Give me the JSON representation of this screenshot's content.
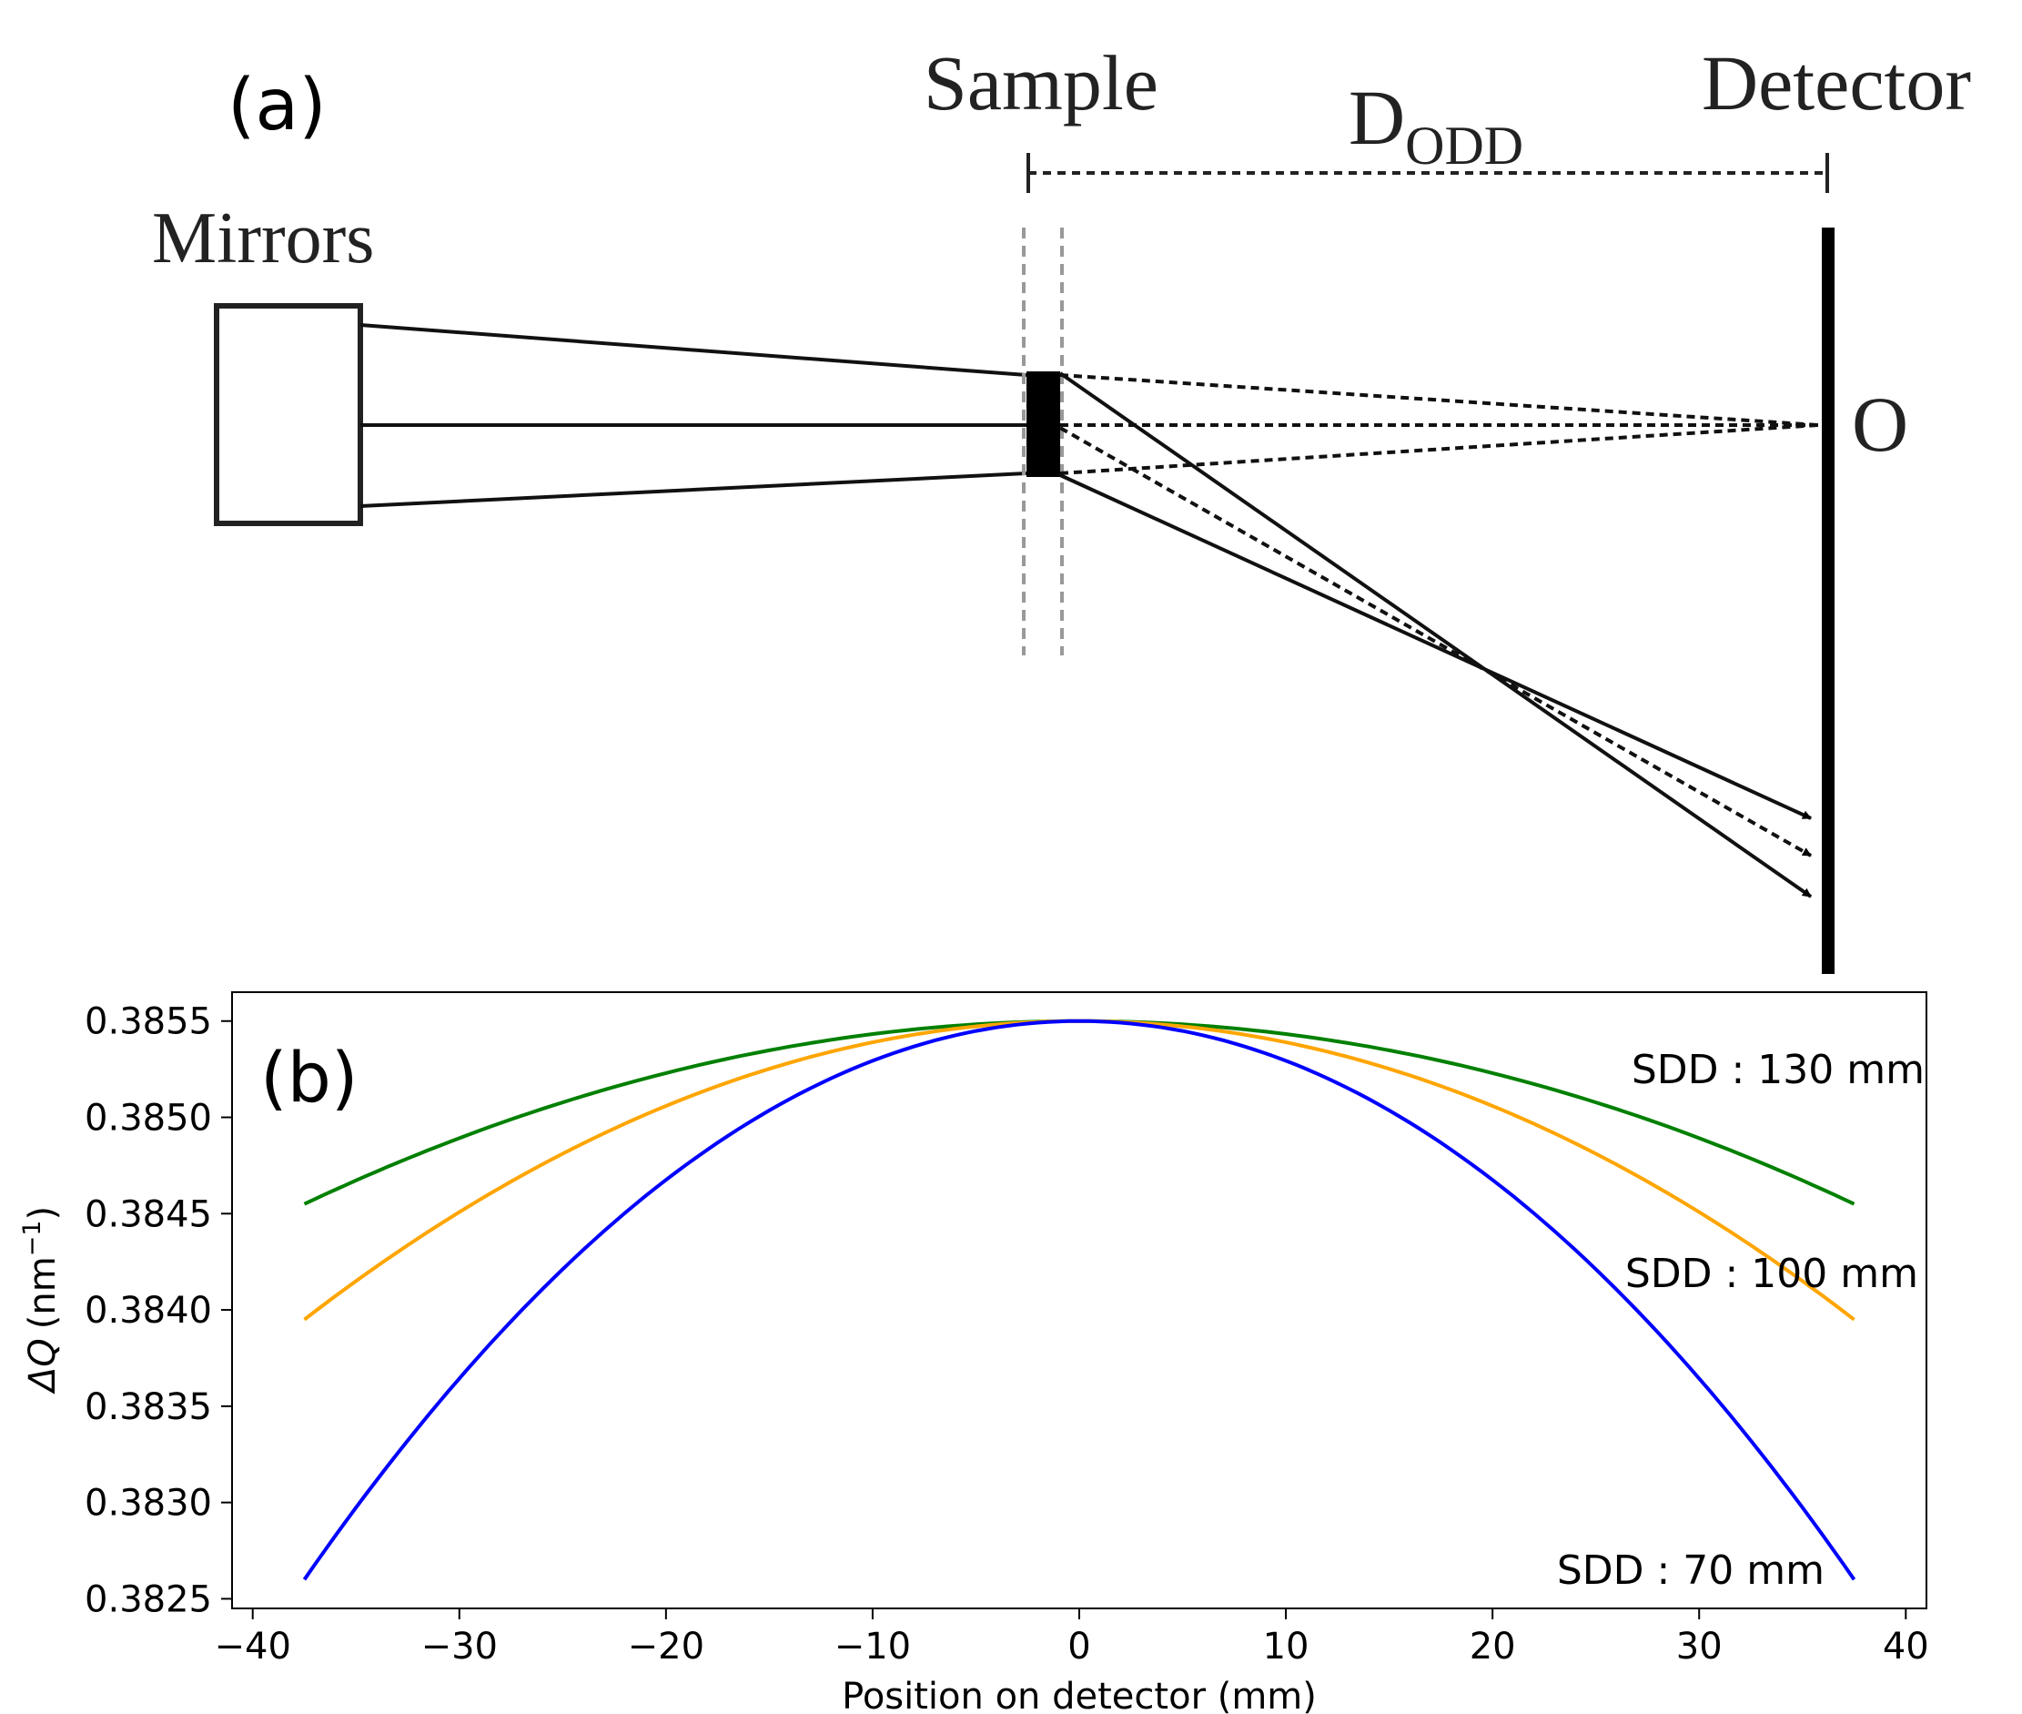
{
  "diagram": {
    "panel_label": "(a)",
    "mirrors_label": "Mirrors",
    "sample_label": "Sample",
    "detector_label": "Detector",
    "distance_label_main": "D",
    "distance_label_sub": "ODD",
    "origin_label": "O"
  },
  "chart_data": {
    "type": "line",
    "panel_label": "(b)",
    "xlabel": "Position on detector (mm)",
    "ylabel_prefix": "ΔQ",
    "ylabel_unit": "(nm",
    "ylabel_exp": "−1",
    "ylabel_close": ")",
    "xlim": [
      -41,
      41
    ],
    "ylim": [
      0.38245,
      0.38565
    ],
    "xticks": [
      -40,
      -30,
      -20,
      -10,
      0,
      10,
      20,
      30,
      40
    ],
    "xtick_labels": [
      "−40",
      "−30",
      "−20",
      "−10",
      "0",
      "10",
      "20",
      "30",
      "40"
    ],
    "yticks": [
      0.3825,
      0.383,
      0.3835,
      0.384,
      0.3845,
      0.385,
      0.3855
    ],
    "ytick_labels": [
      "0.3825",
      "0.3830",
      "0.3835",
      "0.3840",
      "0.3845",
      "0.3850",
      "0.3855"
    ],
    "grid": false,
    "x_range": [
      -37.5,
      37.5
    ],
    "series": [
      {
        "name": "SDD : 130 mm",
        "color": "#008000",
        "peak": 0.3855,
        "edge": 0.38455
      },
      {
        "name": "SDD : 100 mm",
        "color": "#FFA500",
        "peak": 0.3855,
        "edge": 0.38395
      },
      {
        "name": "SDD : 70 mm",
        "color": "#0000FF",
        "peak": 0.3855,
        "edge": 0.3826
      }
    ]
  }
}
